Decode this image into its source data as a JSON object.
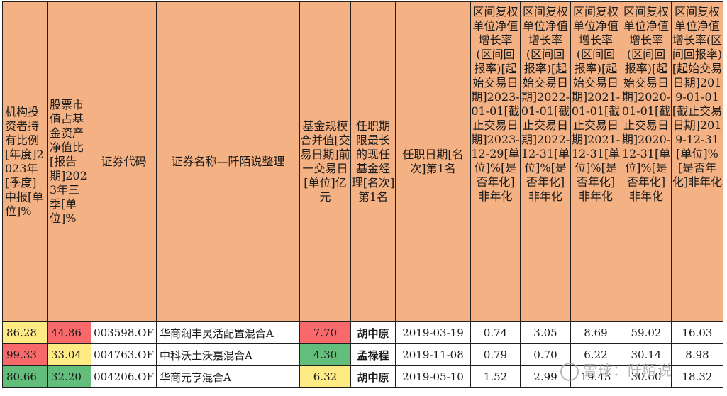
{
  "table": {
    "headers": {
      "inst_holding": "机构投资者持有比例[年度]2023年[季度]中报[单位]%",
      "stock_ratio": "股票市值占基金资产净值比[报告期]2023年三季[单位]%",
      "code": "证券代码",
      "name": "证券名称—阡陌说整理",
      "fund_size": "基金规模合并值[交易日期]前一交易日[单位]亿元",
      "manager": "任职期限最长的现任基金经理[名次]第1名",
      "tenure_date": "任职日期[名次]第1名",
      "periods": [
        "区间复权单位净值增长率(区间回报率)[起始交易日期]2023-01-01[截止交易日期]2023-12-29[单位]%[是否年化]非年化",
        "区间复权单位净值增长率(区间回报率)[起始交易日期]2022-01-01[截止交易日期]2022-12-31[单位]%[是否年化]非年化",
        "区间复权单位净值增长率(区间回报率)[起始交易日期]2021-01-01[截止交易日期]2021-12-31[单位]%[是否年化]非年化",
        "区间复权单位净值增长率(区间回报率)[起始交易日期]2020-01-01[截止交易日期]2020-12-31[单位]%[是否年化]非年化",
        "区间复权单位净值增长率(区间回报率)[起始交易日期]2019-01-01[截止交易日期]2019-12-31[单位]%[是否年化]非年化"
      ]
    },
    "rows": [
      {
        "inst": "86.28",
        "stock": "44.86",
        "code": "003598.OF",
        "name": "华商润丰灵活配置混合A",
        "size": "7.70",
        "manager": "胡中原",
        "date": "2019-03-19",
        "returns": [
          "0.74",
          "3.05",
          "8.69",
          "59.02",
          "16.03"
        ]
      },
      {
        "inst": "99.33",
        "stock": "33.04",
        "code": "004763.OF",
        "name": "中科沃土沃嘉混合A",
        "size": "4.30",
        "manager": "孟禄程",
        "date": "2019-11-08",
        "returns": [
          "0.79",
          "0.70",
          "6.22",
          "30.14",
          "8.98"
        ]
      },
      {
        "inst": "80.66",
        "stock": "32.20",
        "code": "004206.OF",
        "name": "华商元亨混合A",
        "size": "6.32",
        "manager": "胡中原",
        "date": "2019-05-10",
        "returns": [
          "1.52",
          "2.99",
          "19.43",
          "30.60",
          "18.32"
        ]
      }
    ],
    "cell_colors": {
      "header_bg": "#f4b183",
      "yellow": "#ffeb84",
      "red": "#f8696b",
      "green": "#63be7b",
      "light_green": "#9fd17f"
    }
  },
  "watermark": "雪球：阡陌说"
}
